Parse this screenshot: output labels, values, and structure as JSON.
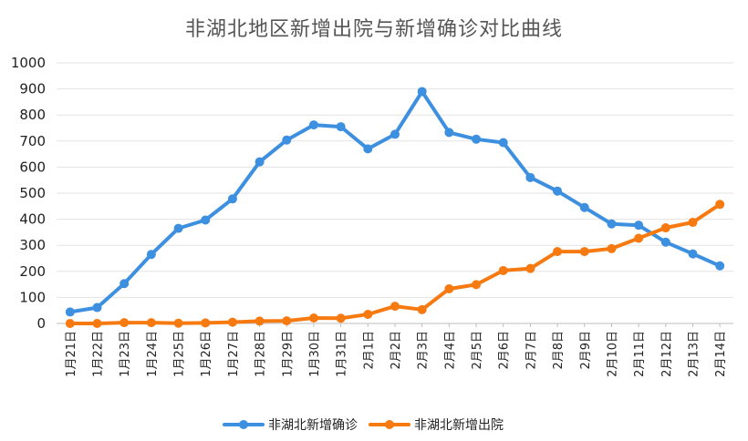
{
  "chart_data": {
    "type": "line",
    "title": "非湖北地区新增出院与新增确诊对比曲线",
    "xlabel": "",
    "ylabel": "",
    "ylim": [
      0,
      1000
    ],
    "yticks": [
      0,
      100,
      200,
      300,
      400,
      500,
      600,
      700,
      800,
      900,
      1000
    ],
    "grid": true,
    "legend_position": "bottom",
    "categories": [
      "1月21日",
      "1月22日",
      "1月23日",
      "1月24日",
      "1月25日",
      "1月26日",
      "1月27日",
      "1月28日",
      "1月29日",
      "1月30日",
      "1月31日",
      "2月1日",
      "2月2日",
      "2月3日",
      "2月4日",
      "2月5日",
      "2月6日",
      "2月7日",
      "2月8日",
      "2月9日",
      "2月10日",
      "2月11日",
      "2月12日",
      "2月13日",
      "2月14日"
    ],
    "series": [
      {
        "name": "非湖北新增确诊",
        "color": "#3d8fe0",
        "values": [
          44,
          61,
          153,
          265,
          365,
          397,
          478,
          620,
          704,
          762,
          755,
          670,
          726,
          890,
          733,
          707,
          694,
          560,
          508,
          445,
          382,
          377,
          312,
          267,
          221
        ]
      },
      {
        "name": "非湖北新增出院",
        "color": "#f77a11",
        "values": [
          0,
          0,
          3,
          3,
          1,
          2,
          5,
          9,
          10,
          21,
          20,
          35,
          66,
          53,
          133,
          149,
          203,
          211,
          276,
          276,
          287,
          327,
          367,
          388,
          457
        ]
      }
    ]
  }
}
